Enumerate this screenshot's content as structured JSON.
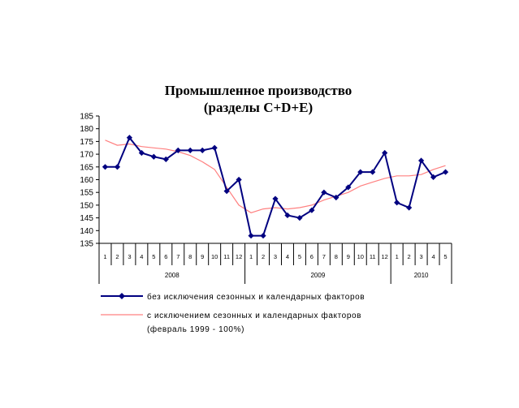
{
  "chart_data": {
    "type": "line",
    "title": [
      "Промышленное производство",
      "(разделы C+D+E)"
    ],
    "ylim": [
      135,
      185
    ],
    "yticks": [
      135,
      140,
      145,
      150,
      155,
      160,
      165,
      170,
      175,
      180,
      185
    ],
    "grid": false,
    "legend_position": "bottom",
    "categories": [
      "1",
      "2",
      "3",
      "4",
      "5",
      "6",
      "7",
      "8",
      "9",
      "10",
      "11",
      "12",
      "1",
      "2",
      "3",
      "4",
      "5",
      "6",
      "7",
      "8",
      "9",
      "10",
      "11",
      "12",
      "1",
      "2",
      "3",
      "4",
      "5"
    ],
    "year_groups": [
      {
        "label": "2008",
        "start": 0,
        "count": 12
      },
      {
        "label": "2009",
        "start": 12,
        "count": 12
      },
      {
        "label": "2010",
        "start": 24,
        "count": 5
      }
    ],
    "series": [
      {
        "name": "без исключения сезонных и календарных факторов",
        "color": "#000080",
        "marker": "diamond",
        "values": [
          165,
          165,
          176.5,
          170.5,
          169,
          168,
          171.5,
          171.5,
          171.5,
          172.5,
          155.5,
          160,
          138,
          138,
          152.5,
          146,
          145,
          148,
          155,
          153,
          157,
          163,
          163,
          170.5,
          151,
          149,
          167.5,
          161,
          163
        ]
      },
      {
        "name": "с исключением сезонных и календарных факторов",
        "name_line2": "(февраль 1999 - 100%)",
        "color": "#ff8080",
        "marker": "none",
        "values": [
          175.5,
          173.5,
          174,
          173,
          172.5,
          172,
          171,
          169.5,
          167,
          164,
          157,
          150,
          147,
          148.5,
          149,
          148.5,
          149,
          150,
          152,
          153.5,
          155,
          157.5,
          159,
          160.5,
          161.5,
          161.5,
          162,
          164,
          165.5
        ]
      }
    ]
  }
}
